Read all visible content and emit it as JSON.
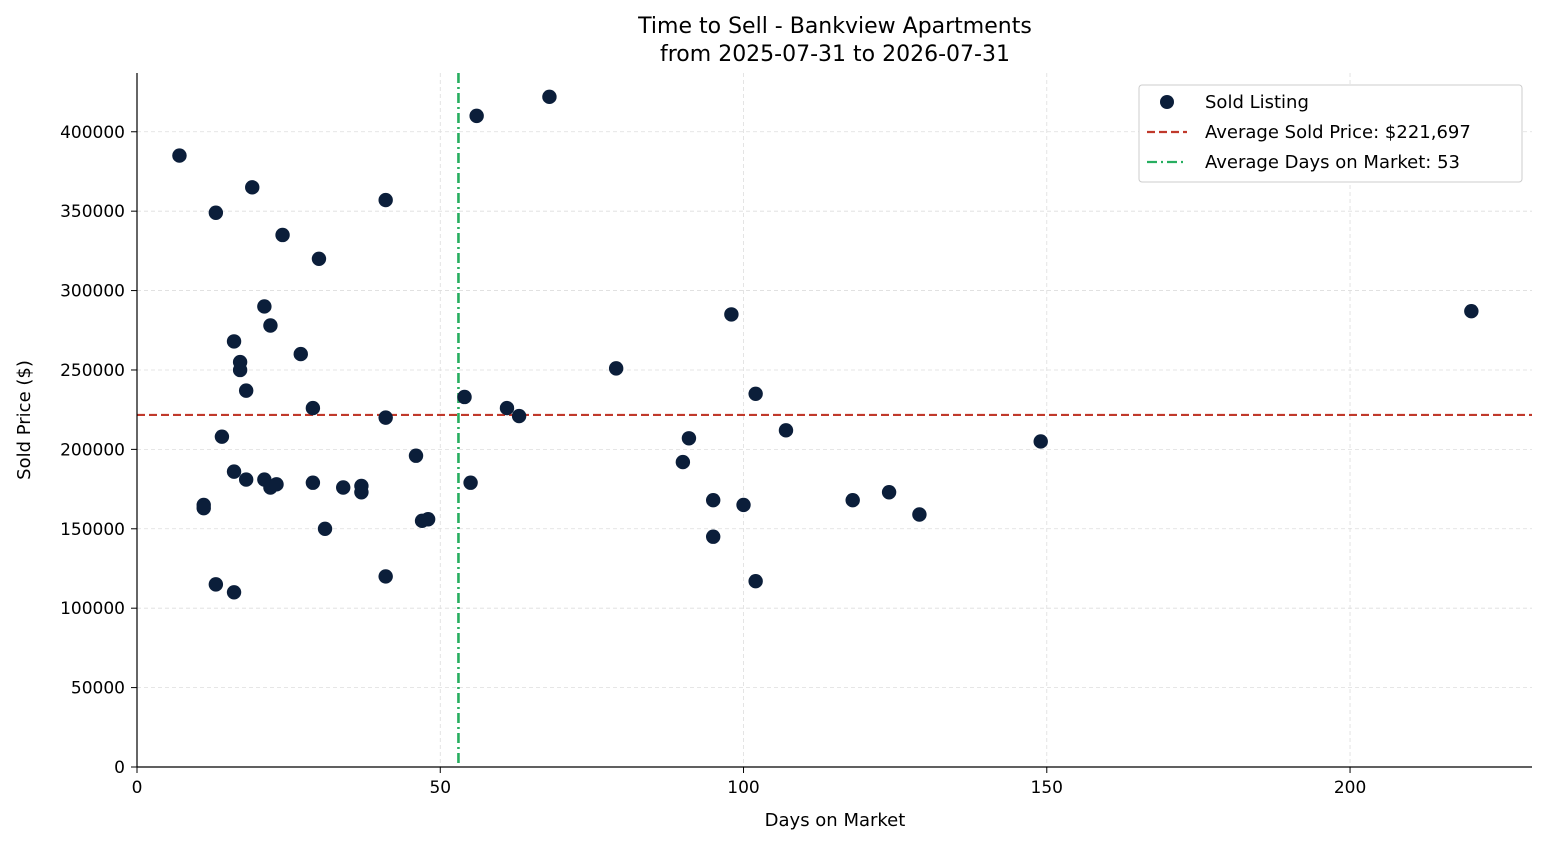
{
  "chart_data": {
    "type": "scatter",
    "title": "Time to Sell - Bankview Apartments",
    "subtitle": "from 2025-07-31 to 2026-07-31",
    "xlabel": "Days on Market",
    "ylabel": "Sold Price ($)",
    "xlim": [
      0,
      230
    ],
    "ylim": [
      0,
      437000
    ],
    "xticks": [
      0,
      50,
      100,
      150,
      200
    ],
    "yticks": [
      0,
      50000,
      100000,
      150000,
      200000,
      250000,
      300000,
      350000,
      400000
    ],
    "grid": true,
    "legend_position": "top-right",
    "series": [
      {
        "name": "Sold Listing",
        "color": "#0b1e3a",
        "points": [
          {
            "x": 7,
            "y": 385000
          },
          {
            "x": 11,
            "y": 165000
          },
          {
            "x": 11,
            "y": 163000
          },
          {
            "x": 13,
            "y": 349000
          },
          {
            "x": 13,
            "y": 115000
          },
          {
            "x": 14,
            "y": 208000
          },
          {
            "x": 16,
            "y": 268000
          },
          {
            "x": 16,
            "y": 186000
          },
          {
            "x": 16,
            "y": 110000
          },
          {
            "x": 17,
            "y": 255000
          },
          {
            "x": 17,
            "y": 250000
          },
          {
            "x": 18,
            "y": 237000
          },
          {
            "x": 18,
            "y": 181000
          },
          {
            "x": 19,
            "y": 365000
          },
          {
            "x": 21,
            "y": 290000
          },
          {
            "x": 21,
            "y": 181000
          },
          {
            "x": 22,
            "y": 278000
          },
          {
            "x": 22,
            "y": 176000
          },
          {
            "x": 23,
            "y": 178000
          },
          {
            "x": 24,
            "y": 335000
          },
          {
            "x": 27,
            "y": 260000
          },
          {
            "x": 29,
            "y": 226000
          },
          {
            "x": 29,
            "y": 179000
          },
          {
            "x": 30,
            "y": 320000
          },
          {
            "x": 31,
            "y": 150000
          },
          {
            "x": 34,
            "y": 176000
          },
          {
            "x": 37,
            "y": 177000
          },
          {
            "x": 37,
            "y": 173000
          },
          {
            "x": 41,
            "y": 357000
          },
          {
            "x": 41,
            "y": 220000
          },
          {
            "x": 41,
            "y": 120000
          },
          {
            "x": 46,
            "y": 196000
          },
          {
            "x": 47,
            "y": 155000
          },
          {
            "x": 48,
            "y": 156000
          },
          {
            "x": 54,
            "y": 233000
          },
          {
            "x": 55,
            "y": 179000
          },
          {
            "x": 56,
            "y": 410000
          },
          {
            "x": 61,
            "y": 226000
          },
          {
            "x": 63,
            "y": 221000
          },
          {
            "x": 68,
            "y": 422000
          },
          {
            "x": 79,
            "y": 251000
          },
          {
            "x": 90,
            "y": 192000
          },
          {
            "x": 91,
            "y": 207000
          },
          {
            "x": 95,
            "y": 168000
          },
          {
            "x": 95,
            "y": 145000
          },
          {
            "x": 98,
            "y": 285000
          },
          {
            "x": 100,
            "y": 165000
          },
          {
            "x": 102,
            "y": 235000
          },
          {
            "x": 102,
            "y": 117000
          },
          {
            "x": 107,
            "y": 212000
          },
          {
            "x": 118,
            "y": 168000
          },
          {
            "x": 124,
            "y": 173000
          },
          {
            "x": 129,
            "y": 159000
          },
          {
            "x": 149,
            "y": 205000
          },
          {
            "x": 220,
            "y": 287000
          }
        ]
      }
    ],
    "reference_lines": [
      {
        "name": "Average Sold Price: $221,697",
        "orientation": "horizontal",
        "value": 221697,
        "color": "#c0392b",
        "style": "dashed"
      },
      {
        "name": "Average Days on Market: 53",
        "orientation": "vertical",
        "value": 53,
        "color": "#27ae60",
        "style": "dashdot"
      }
    ]
  }
}
